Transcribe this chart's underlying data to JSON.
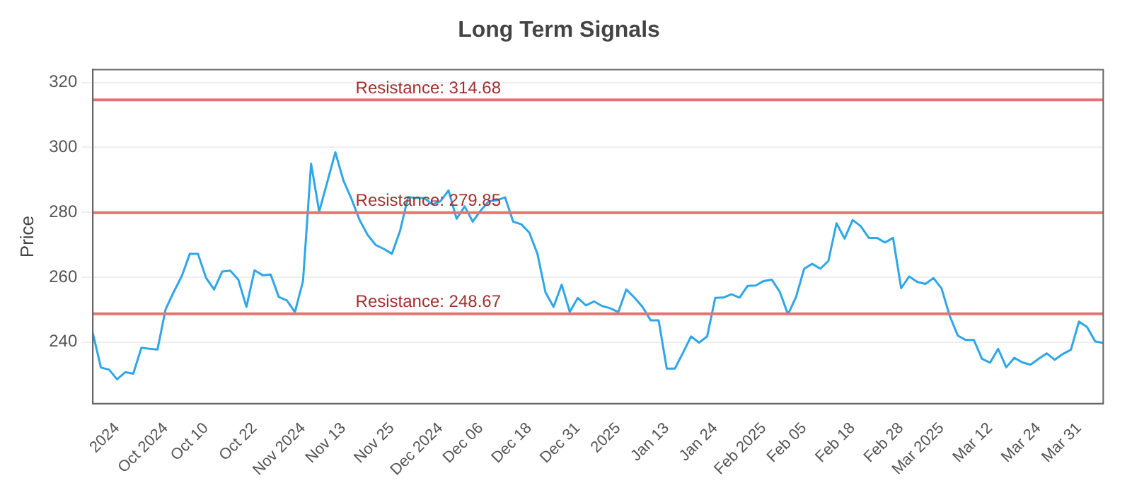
{
  "chart_data": {
    "type": "line",
    "title": "Long Term Signals",
    "ylabel": "Price",
    "categories": [
      null,
      null,
      null,
      "2024",
      null,
      null,
      null,
      null,
      null,
      "Oct 2024",
      null,
      null,
      null,
      null,
      "Oct 10",
      null,
      null,
      null,
      null,
      null,
      "Oct 22",
      null,
      null,
      null,
      null,
      null,
      "Nov 2024",
      null,
      null,
      null,
      null,
      "Nov 13",
      null,
      null,
      null,
      null,
      null,
      "Nov 25",
      null,
      null,
      null,
      null,
      null,
      "Dec 2024",
      null,
      null,
      null,
      null,
      "Dec 06",
      null,
      null,
      null,
      null,
      null,
      "Dec 18",
      null,
      null,
      null,
      null,
      null,
      "Dec 31",
      null,
      null,
      null,
      null,
      "2025",
      null,
      null,
      null,
      null,
      null,
      "Jan 13",
      null,
      null,
      null,
      null,
      null,
      "Jan 24",
      null,
      null,
      null,
      null,
      null,
      "Feb 2025",
      null,
      null,
      null,
      null,
      "Feb 05",
      null,
      null,
      null,
      null,
      null,
      "Feb 18",
      null,
      null,
      null,
      null,
      null,
      "Feb 28",
      null,
      null,
      null,
      null,
      "Mar 2025",
      null,
      null,
      null,
      null,
      null,
      "Mar 12",
      null,
      null,
      null,
      null,
      null,
      "Mar 24",
      null,
      null,
      null,
      null,
      "Mar 31",
      null,
      null,
      null
    ],
    "series": [
      {
        "color": "#2ea6e8",
        "values": [
          242.7,
          232.1,
          231.5,
          228.5,
          230.7,
          230.2,
          238.2,
          237.9,
          237.7,
          250.1,
          255.4,
          260.3,
          267.2,
          267.2,
          259.8,
          256.2,
          261.7,
          262.0,
          259.2,
          250.8,
          262.1,
          260.6,
          260.8,
          253.9,
          252.8,
          249.2,
          258.8,
          295.0,
          280.2,
          289.3,
          298.5,
          289.8,
          284.1,
          277.6,
          273.0,
          269.9,
          268.7,
          267.2,
          274.2,
          284.7,
          284.4,
          284.4,
          282.4,
          283.4,
          286.7,
          278.0,
          281.8,
          277.1,
          280.6,
          283.4,
          283.7,
          284.6,
          277.1,
          276.3,
          273.7,
          267.2,
          255.3,
          250.8,
          257.7,
          249.3,
          253.6,
          251.3,
          252.5,
          251.1,
          250.4,
          249.2,
          256.2,
          253.7,
          250.8,
          246.7,
          246.7,
          231.8,
          231.8,
          236.6,
          241.7,
          239.8,
          241.7,
          253.6,
          253.7,
          254.7,
          253.7,
          257.3,
          257.4,
          258.8,
          259.2,
          255.4,
          248.5,
          253.9,
          262.6,
          264.1,
          262.6,
          265.0,
          276.6,
          271.9,
          277.6,
          275.7,
          272.1,
          272.1,
          270.7,
          272.1,
          256.6,
          260.2,
          258.5,
          257.9,
          259.7,
          256.5,
          248.1,
          242.0,
          240.6,
          240.6,
          234.8,
          233.6,
          237.9,
          232.2,
          235.1,
          233.7,
          233.0,
          234.8,
          236.5,
          234.5,
          236.3,
          237.6,
          246.3,
          244.6,
          240.2,
          239.7
        ]
      }
    ],
    "ylim": [
      221,
      324
    ],
    "yticks": [
      240,
      260,
      280,
      300,
      320
    ],
    "grid": "y",
    "legend": false,
    "marker": "none",
    "line_style": "solid",
    "ref_lines": [
      {
        "axis": "y",
        "value": 314.68,
        "label": "Resistance: 314.68",
        "color": "#e57373"
      },
      {
        "axis": "y",
        "value": 279.85,
        "label": "Resistance: 279.85",
        "color": "#e57373"
      },
      {
        "axis": "y",
        "value": 248.67,
        "label": "Resistance: 248.67",
        "color": "#e57373"
      }
    ]
  }
}
